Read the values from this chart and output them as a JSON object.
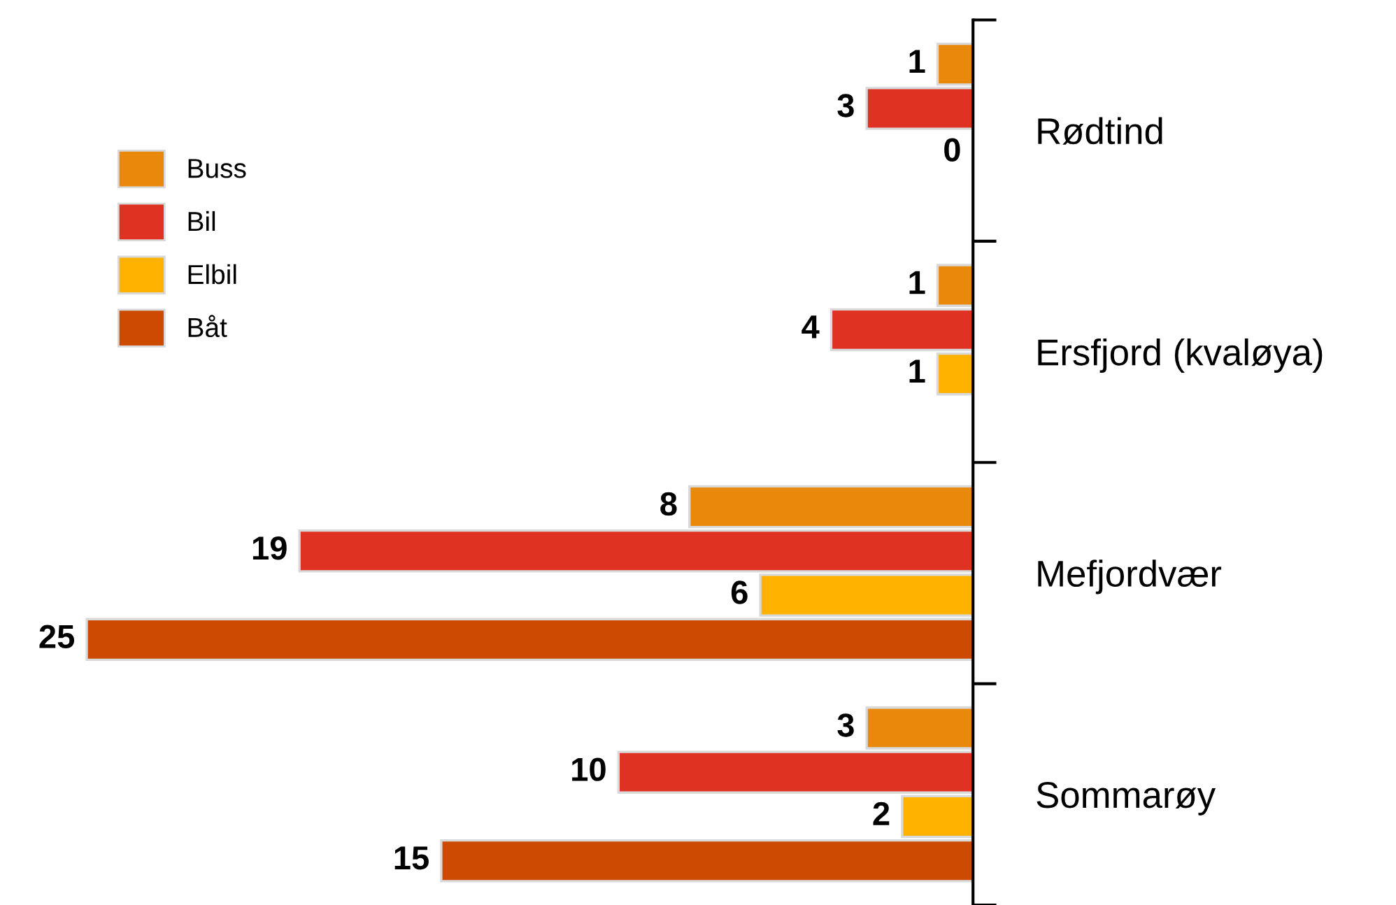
{
  "chart_data": {
    "type": "bar",
    "orientation": "horizontal",
    "categories": [
      "Rødtind",
      "Ersfjord (kvaløya)",
      "Mefjordvær",
      "Sommarøy"
    ],
    "series": [
      {
        "name": "Buss",
        "color": "#e8890c",
        "values": [
          1,
          1,
          8,
          3
        ]
      },
      {
        "name": "Bil",
        "color": "#e03222",
        "values": [
          3,
          4,
          19,
          10
        ]
      },
      {
        "name": "Elbil",
        "color": "#ffb300",
        "values": [
          0,
          1,
          6,
          2
        ]
      },
      {
        "name": "Båt",
        "color": "#cc4a02",
        "values": [
          null,
          null,
          25,
          15
        ]
      }
    ],
    "data_labels": true,
    "legend": "top left",
    "grid": false
  }
}
